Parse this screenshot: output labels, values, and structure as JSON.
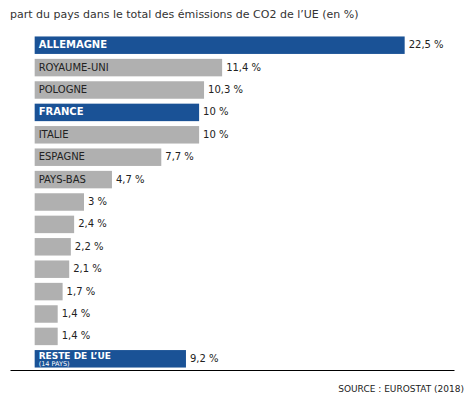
{
  "chart_data": {
    "type": "bar",
    "orientation": "horizontal",
    "title": "part du pays dans le total des émissions de CO2 de l’UE (en %)",
    "annotations": [
      "(14 PAYS)",
      "SOURCE : EUROSTAT (2018)"
    ],
    "categories": [
      "ALLEMAGNE",
      "ROYAUME-UNI",
      "POLOGNE",
      "FRANCE",
      "ITALIE",
      "ESPAGNE",
      "PAYS-BAS",
      null,
      null,
      null,
      null,
      null,
      null,
      null,
      "RESTE DE L’UE"
    ],
    "values": [
      22.5,
      11.4,
      10.3,
      10.0,
      10.0,
      7.7,
      4.7,
      3.0,
      2.4,
      2.2,
      2.1,
      1.7,
      1.4,
      1.4,
      9.2
    ],
    "value_labels": [
      "22,5 %",
      "11,4 %",
      "10,3 %",
      "10 %",
      "10 %",
      "7,7 %",
      "4,7 %",
      "3 %",
      "2,4 %",
      "2,2 %",
      "2,1 %",
      "1,7 %",
      "1,4 %",
      "1,4 %",
      "9,2 %"
    ],
    "colors": [
      "#1a5296",
      "#b0b0b0",
      "#b0b0b0",
      "#1a5296",
      "#b0b0b0",
      "#b0b0b0",
      "#b0b0b0",
      "#b0b0b0",
      "#b0b0b0",
      "#b0b0b0",
      "#b0b0b0",
      "#b0b0b0",
      "#b0b0b0",
      "#b0b0b0",
      "#1a5296"
    ],
    "xlim": [
      -1.5,
      25.5
    ],
    "data_labels": true,
    "tick_labels": false
  }
}
